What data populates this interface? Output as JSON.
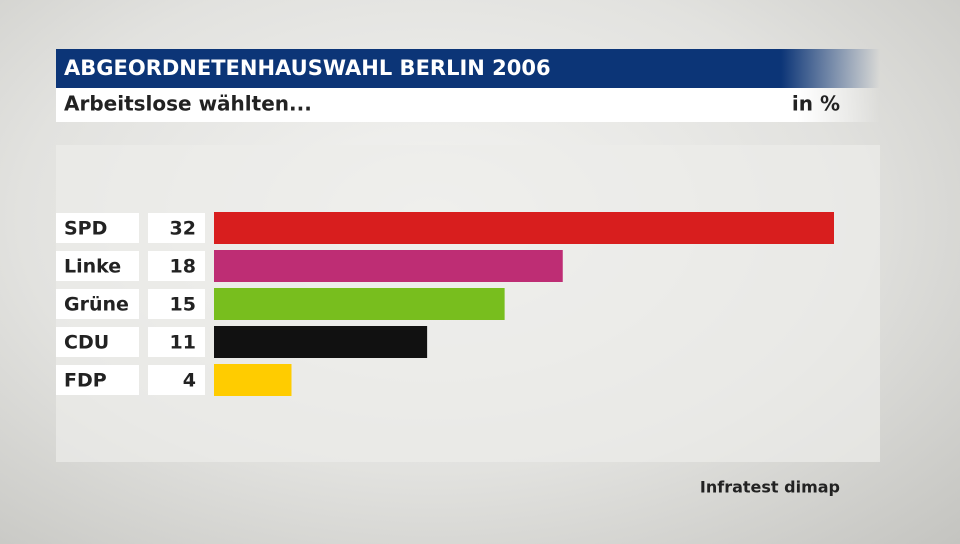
{
  "chart_data": {
    "type": "bar",
    "title": "ABGEORDNETENHAUSWAHL BERLIN 2006",
    "subtitle": "Arbeitslose wählten...",
    "unit": "in %",
    "source": "Infratest dimap",
    "categories": [
      "SPD",
      "Linke",
      "Grüne",
      "CDU",
      "FDP"
    ],
    "values": [
      32,
      18,
      15,
      11,
      4
    ],
    "colors": [
      "#d81e1e",
      "#be2d74",
      "#78be1e",
      "#111111",
      "#ffcc00"
    ]
  }
}
